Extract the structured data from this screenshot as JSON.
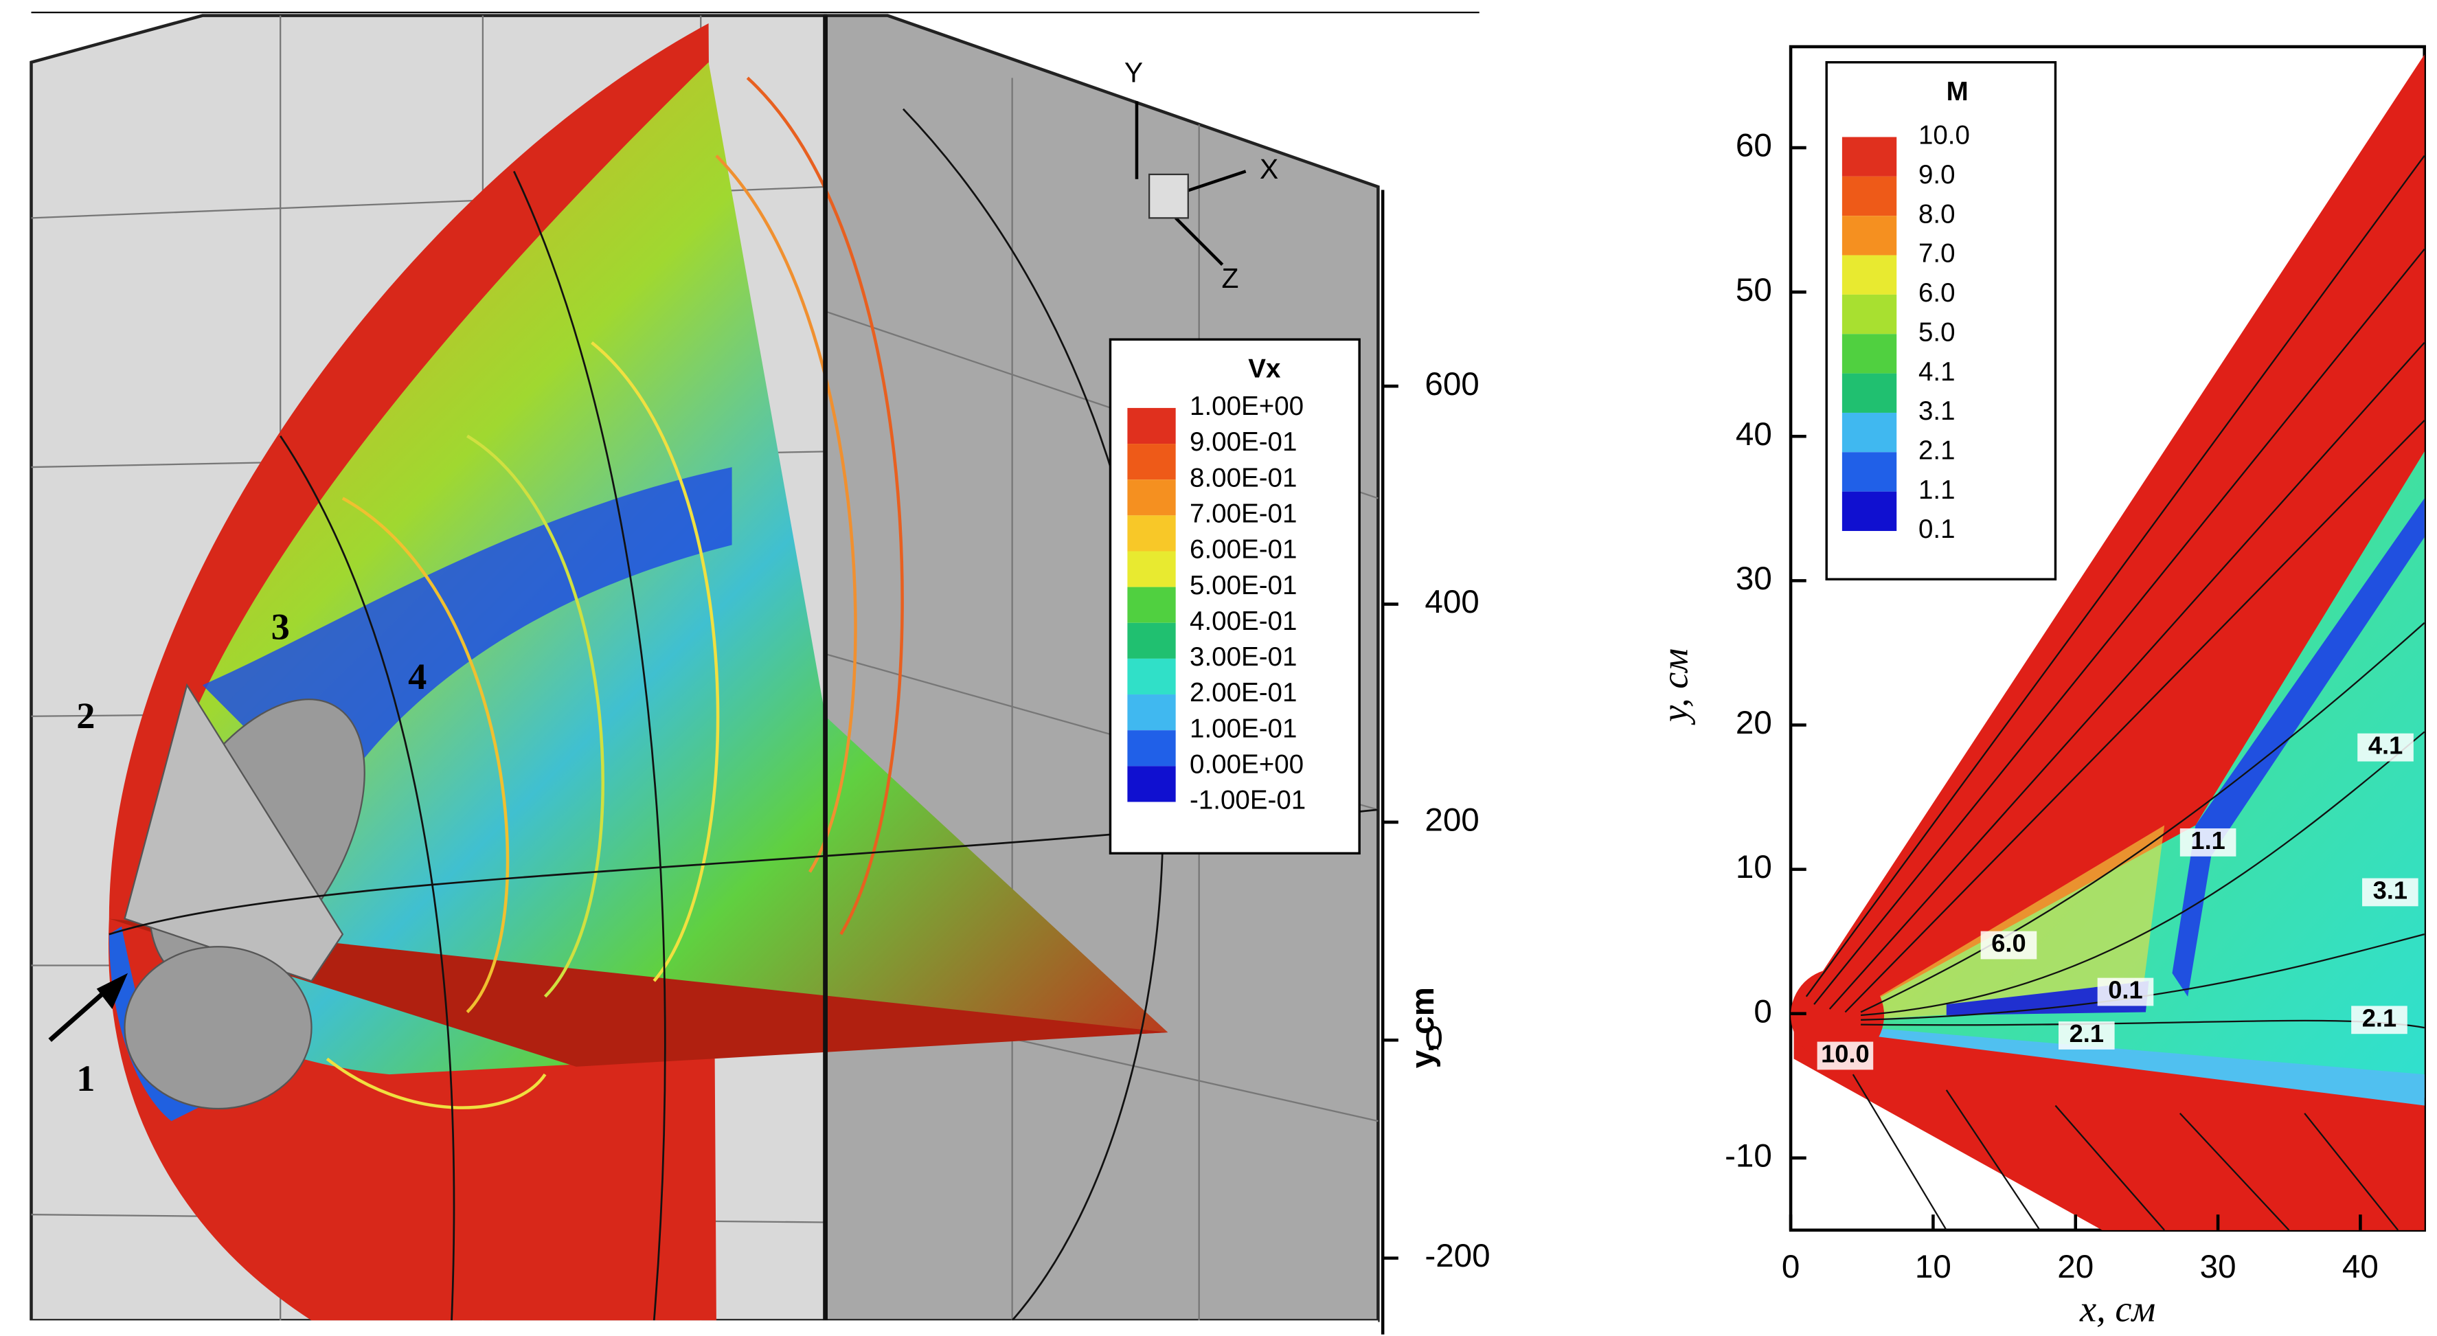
{
  "left_panel": {
    "legend": {
      "title": "Vx",
      "levels": [
        "1.00E+00",
        "9.00E-01",
        "8.00E-01",
        "7.00E-01",
        "6.00E-01",
        "5.00E-01",
        "4.00E-01",
        "3.00E-01",
        "2.00E-01",
        "1.00E-01",
        "0.00E+00",
        "-1.00E-01"
      ]
    },
    "region_labels": [
      "1",
      "2",
      "3",
      "4"
    ],
    "triad": [
      "Y",
      "X",
      "Z"
    ],
    "axis": {
      "label": "y, cm",
      "ylim": [
        -270,
        780
      ],
      "ticks": [
        600,
        400,
        200,
        0,
        -200
      ]
    }
  },
  "right_panel": {
    "legend": {
      "title": "M",
      "levels": [
        "10.0",
        "9.0",
        "8.0",
        "7.0",
        "6.0",
        "5.0",
        "4.1",
        "3.1",
        "2.1",
        "1.1",
        "0.1"
      ]
    },
    "contour_labels": [
      "10.0",
      "6.0",
      "0.1",
      "2.1",
      "1.1",
      "4.1",
      "3.1",
      "2.1"
    ],
    "x_axis": {
      "label": "x, см",
      "xlim": [
        0,
        44.5
      ],
      "ticks": [
        0,
        10,
        20,
        30,
        40
      ]
    },
    "y_axis": {
      "label": "y, см",
      "ylim": [
        -15,
        67
      ],
      "ticks": [
        -10,
        0,
        10,
        20,
        30,
        40,
        50,
        60
      ]
    }
  }
}
